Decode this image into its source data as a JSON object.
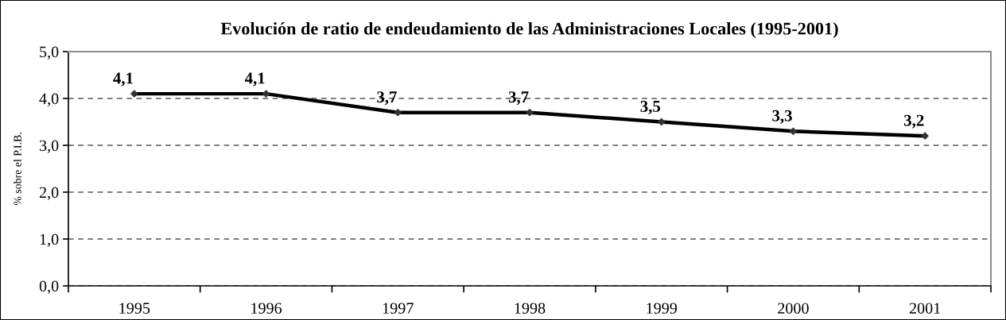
{
  "chart_data": {
    "type": "line",
    "title": "Evolución de ratio de endeudamiento de las Administraciones Locales (1995-2001)",
    "ylabel": "% sobre el P.I.B.",
    "categories": [
      "1995",
      "1996",
      "1997",
      "1998",
      "1999",
      "2000",
      "2001"
    ],
    "series": [
      {
        "color": "#000000",
        "values": [
          4.1,
          4.1,
          3.7,
          3.7,
          3.5,
          3.3,
          3.2
        ],
        "value_labels": [
          "4,1",
          "4,1",
          "3,7",
          "3,7",
          "3,5",
          "3,3",
          "3,2"
        ]
      }
    ],
    "ylim": [
      0,
      5
    ],
    "yticks": [
      {
        "value": 0,
        "label": "0,0"
      },
      {
        "value": 1,
        "label": "1,0"
      },
      {
        "value": 2,
        "label": "2,0"
      },
      {
        "value": 3,
        "label": "3,0"
      },
      {
        "value": 4,
        "label": "4,0"
      },
      {
        "value": 5,
        "label": "5,0"
      }
    ],
    "grid": "y",
    "marker": "diamond",
    "line_style": "solid"
  }
}
